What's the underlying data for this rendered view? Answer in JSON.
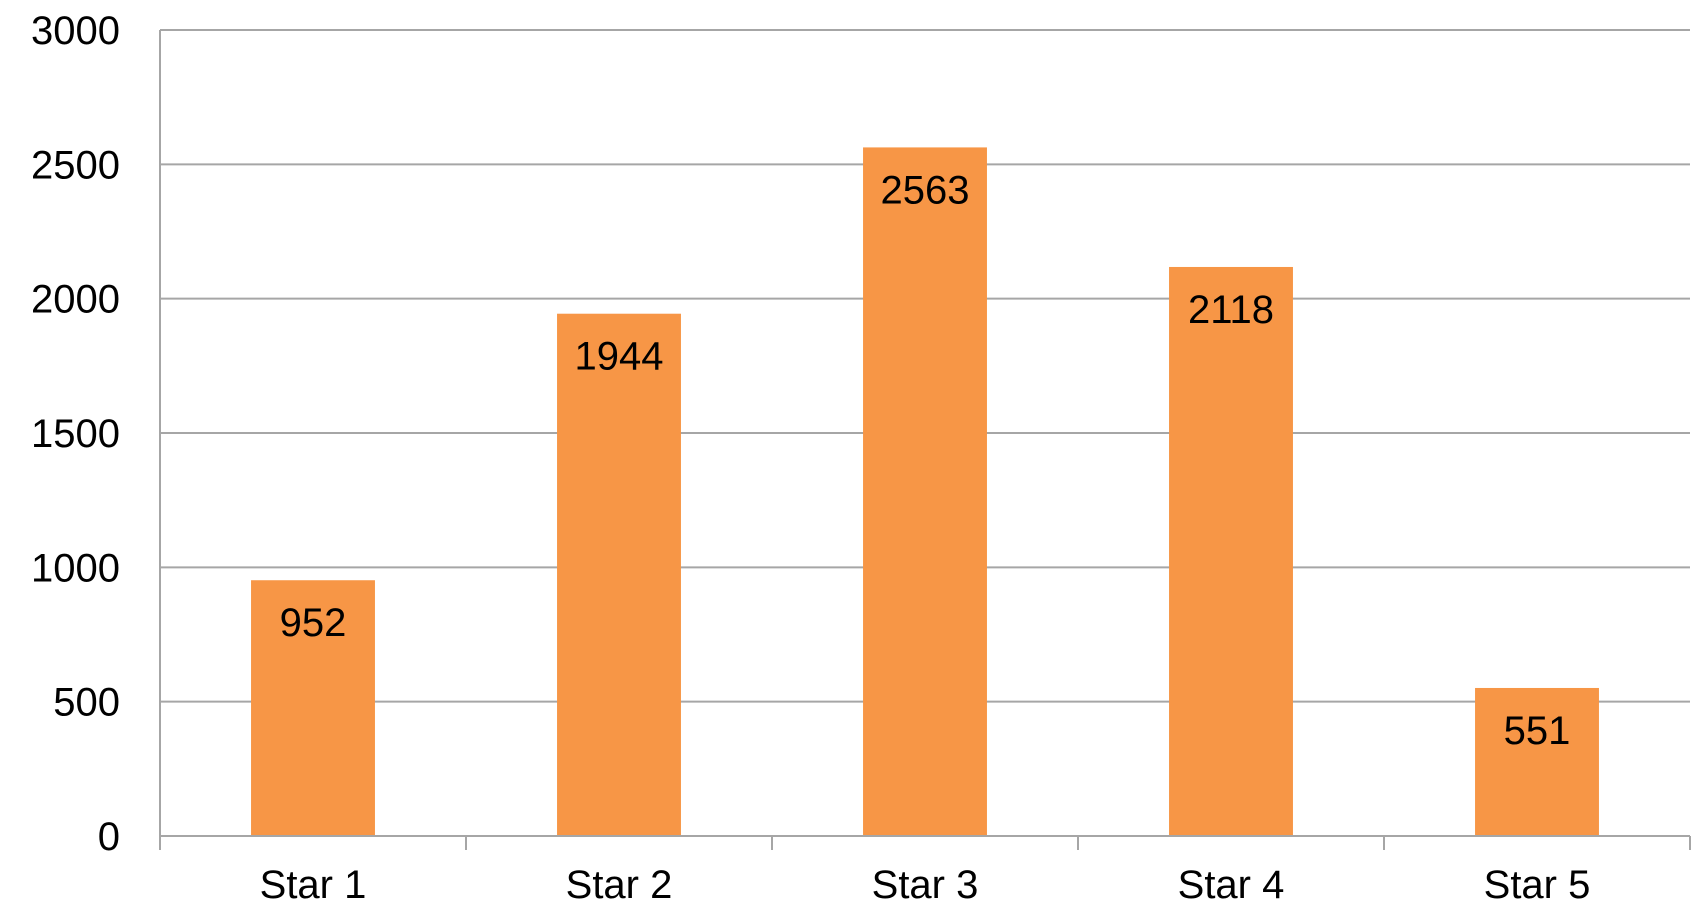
{
  "chart_data": {
    "type": "bar",
    "title": "",
    "xlabel": "",
    "ylabel": "",
    "categories": [
      "Star 1",
      "Star 2",
      "Star 3",
      "Star 4",
      "Star 5"
    ],
    "values": [
      952,
      1944,
      2563,
      2118,
      551
    ],
    "data_labels": [
      "952",
      "1944",
      "2563",
      "2118",
      "551"
    ],
    "ylim": [
      0,
      3000
    ],
    "yticks": [
      0,
      500,
      1000,
      1500,
      2000,
      2500,
      3000
    ],
    "ytick_labels": [
      "0",
      "500",
      "1000",
      "1500",
      "2000",
      "2500",
      "3000"
    ],
    "grid": true,
    "legend": "none",
    "bar_color": "#f79646",
    "grid_color": "#a6a6a6",
    "axis_color": "#a6a6a6"
  }
}
